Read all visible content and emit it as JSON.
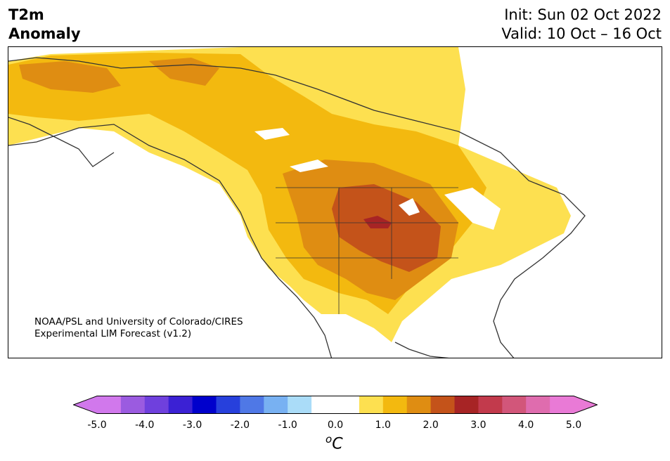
{
  "title": {
    "left_line1": "T2m",
    "left_line2": "Anomaly",
    "init": "Init: Sun 02 Oct 2022",
    "valid": "Valid: 10 Oct – 16 Oct"
  },
  "credit": {
    "line1": "NOAA/PSL and University of Colorado/CIRES",
    "line2": "Experimental LIM Forecast (v1.2)"
  },
  "colorbar": {
    "ticks": [
      "-5.0",
      "-4.0",
      "-3.0",
      "-2.0",
      "-1.0",
      "0.0",
      "1.0",
      "2.0",
      "3.0",
      "4.0",
      "5.0"
    ],
    "colors": [
      "#d178ec",
      "#9b5be0",
      "#6f40dd",
      "#3b21d4",
      "#0000cc",
      "#2740dc",
      "#4f78e6",
      "#78b1f2",
      "#aadcf8",
      "#ffffff",
      "#ffffff",
      "#fde050",
      "#f3b90f",
      "#df8d12",
      "#c4531a",
      "#a72425",
      "#c23a4c",
      "#d2567a",
      "#df6cae",
      "#e97ad6"
    ],
    "extend_low": "#d178ec",
    "extend_high": "#e97ad6",
    "unit_symbol": "o",
    "unit_letter": "C"
  },
  "map_colors": {
    "ocean": "#ffffff",
    "land_neutral": "#ffffff",
    "anom_0_5_1": "#fde050",
    "anom_1_1_5": "#f3b90f",
    "anom_1_5_2": "#df8d12",
    "anom_2_2_5": "#c4531a",
    "anom_2_5_3": "#a72425",
    "coastline": "#333333"
  }
}
